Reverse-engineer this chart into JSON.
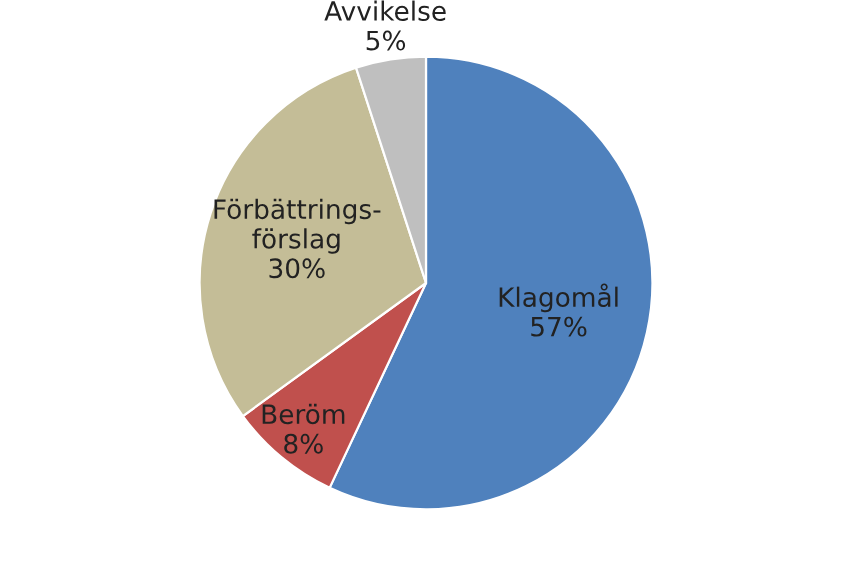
{
  "chart_data": {
    "type": "pie",
    "categories": [
      "Klagomål",
      "Beröm",
      "Förbättrings-\nförslag",
      "Avvikelse"
    ],
    "values": [
      57,
      8,
      30,
      5
    ],
    "colors": [
      "#4f81bd",
      "#c0504d",
      "#c4bd97",
      "#bfbfbf"
    ],
    "value_labels": [
      "57%",
      "8%",
      "30%",
      "5%"
    ]
  }
}
